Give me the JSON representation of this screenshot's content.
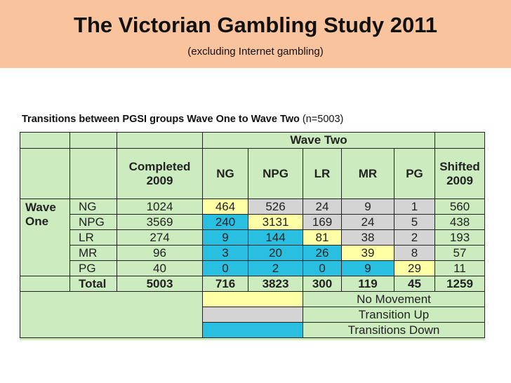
{
  "header": {
    "title": "The Victorian Gambling Study 2011",
    "subtitle": "(excluding Internet gambling)"
  },
  "caption": {
    "bold": "Transitions between PGSI groups Wave One to Wave Two",
    "normal": "(n=5003)"
  },
  "table": {
    "wave_two": "Wave Two",
    "wave_one_line1": "Wave",
    "wave_one_line2": "One",
    "completed_line1": "Completed",
    "completed_line2": "2009",
    "shifted_line1": "Shifted",
    "shifted_line2": "2009",
    "columns": [
      "NG",
      "NPG",
      "LR",
      "MR",
      "PG"
    ],
    "rows": [
      {
        "label": "NG",
        "completed": "1024",
        "cells": [
          "464",
          "526",
          "24",
          "9",
          "1"
        ],
        "shifted": "560"
      },
      {
        "label": "NPG",
        "completed": "3569",
        "cells": [
          "240",
          "3131",
          "169",
          "24",
          "5"
        ],
        "shifted": "438"
      },
      {
        "label": "LR",
        "completed": "274",
        "cells": [
          "9",
          "144",
          "81",
          "38",
          "2"
        ],
        "shifted": "193"
      },
      {
        "label": "MR",
        "completed": "96",
        "cells": [
          "3",
          "20",
          "26",
          "39",
          "8"
        ],
        "shifted": "57"
      },
      {
        "label": "PG",
        "completed": "40",
        "cells": [
          "0",
          "2",
          "0",
          "9",
          "29"
        ],
        "shifted": "11"
      }
    ],
    "total": {
      "label": "Total",
      "completed": "5003",
      "cells": [
        "716",
        "3823",
        "300",
        "119",
        "45"
      ],
      "shifted": "1259"
    },
    "legend": [
      "No Movement",
      "Transition Up",
      "Transitions Down"
    ]
  },
  "colors": {
    "header_bg": "#f9c49d",
    "table_bg": "#ccecc0",
    "no_movement": "#ffffa6",
    "transition_up": "#d4d4d4",
    "transitions_down": "#29bfe0"
  }
}
